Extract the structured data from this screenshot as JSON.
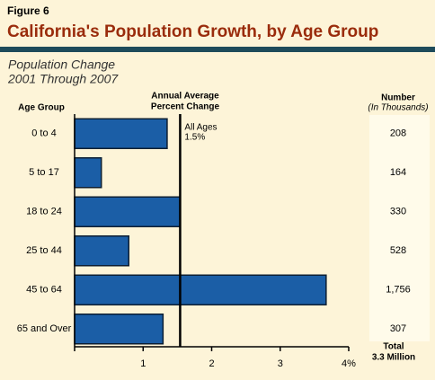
{
  "figure_label": "Figure 6",
  "chart_data": {
    "type": "bar",
    "orientation": "horizontal",
    "title": "California's Population Growth, by Age Group",
    "subtitle": [
      "Population Change",
      "2001 Through 2007"
    ],
    "category_header": "Age Group",
    "value_header": [
      "Annual Average",
      "Percent Change"
    ],
    "categories": [
      "0 to 4",
      "5 to 17",
      "18 to 24",
      "25 to 44",
      "45 to 64",
      "65 and Over"
    ],
    "values": [
      1.35,
      0.39,
      1.54,
      0.79,
      3.67,
      1.29
    ],
    "color": "#1b5ea6",
    "xlim": [
      0,
      4
    ],
    "xticks": [
      1,
      2,
      3,
      {
        "value": 4,
        "label": "4%"
      }
    ],
    "reference": {
      "value": 1.54,
      "label": [
        "All Ages",
        "1.5%"
      ]
    },
    "numbers": {
      "header": [
        "Number",
        "(In Thousands)"
      ],
      "values": [
        208,
        164,
        330,
        528,
        1756,
        307
      ],
      "value_labels": [
        "208",
        "164",
        "330",
        "528",
        "1,756",
        "307"
      ],
      "total": [
        "Total",
        "3.3 Million"
      ]
    }
  }
}
